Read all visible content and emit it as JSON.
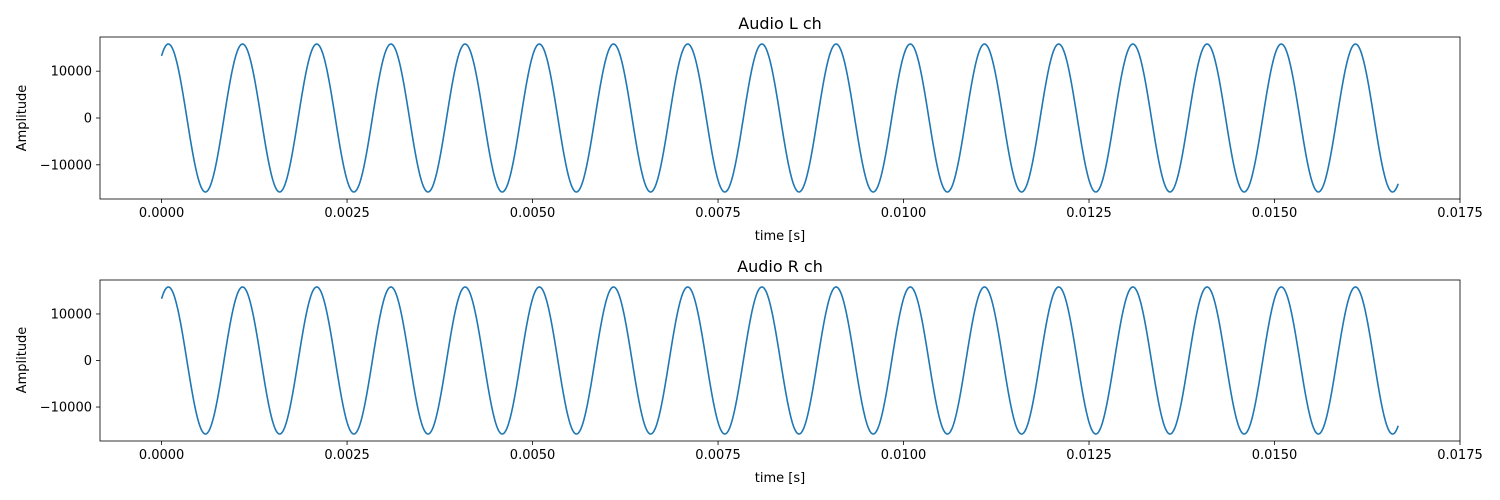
{
  "chart_data": [
    {
      "type": "line",
      "title": "Audio L ch",
      "xlabel": "time [s]",
      "ylabel": "Amplitude",
      "xlim": [
        -0.00083,
        0.0175
      ],
      "ylim": [
        -17300,
        17300
      ],
      "xticks": [
        0.0,
        0.0025,
        0.005,
        0.0075,
        0.01,
        0.0125,
        0.015,
        0.0175
      ],
      "xtick_labels": [
        "0.0000",
        "0.0025",
        "0.0050",
        "0.0075",
        "0.0100",
        "0.0125",
        "0.0150",
        "0.0175"
      ],
      "yticks": [
        -10000,
        0,
        10000
      ],
      "ytick_labels": [
        "−10000",
        "0",
        "10000"
      ],
      "grid": false,
      "series": [
        {
          "color": "#1f77b4",
          "signal": {
            "shape": "sine",
            "amplitude": 15800,
            "frequency_hz": 1000,
            "phase_rad": 0.998,
            "t_start": 0.0,
            "t_end": 0.016667
          }
        }
      ]
    },
    {
      "type": "line",
      "title": "Audio R ch",
      "xlabel": "time [s]",
      "ylabel": "Amplitude",
      "xlim": [
        -0.00083,
        0.0175
      ],
      "ylim": [
        -17300,
        17300
      ],
      "xticks": [
        0.0,
        0.0025,
        0.005,
        0.0075,
        0.01,
        0.0125,
        0.015,
        0.0175
      ],
      "xtick_labels": [
        "0.0000",
        "0.0025",
        "0.0050",
        "0.0075",
        "0.0100",
        "0.0125",
        "0.0150",
        "0.0175"
      ],
      "yticks": [
        -10000,
        0,
        10000
      ],
      "ytick_labels": [
        "−10000",
        "0",
        "10000"
      ],
      "grid": false,
      "series": [
        {
          "color": "#1f77b4",
          "signal": {
            "shape": "sine",
            "amplitude": 15800,
            "frequency_hz": 1000,
            "phase_rad": 0.998,
            "t_start": 0.0,
            "t_end": 0.016667
          }
        }
      ]
    }
  ]
}
